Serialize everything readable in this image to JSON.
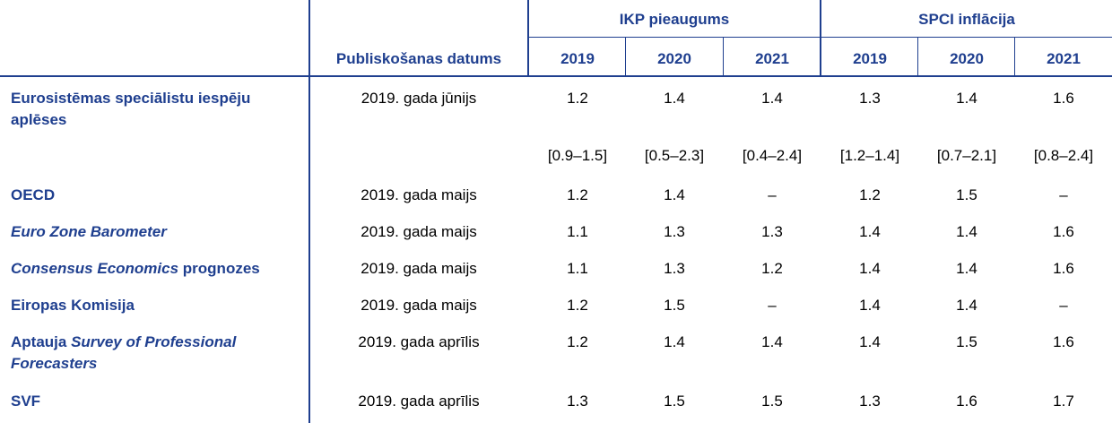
{
  "header": {
    "group_gdp": "IKP pieaugums",
    "group_hicp": "SPCI inflācija",
    "publication_date": "Publiskošanas datums",
    "years": [
      "2019",
      "2020",
      "2021",
      "2019",
      "2020",
      "2021"
    ]
  },
  "rows": [
    {
      "label_parts": [
        {
          "t": "Eurosistēmas speciālistu iespēju aplēses",
          "i": false
        }
      ],
      "date": "2019. gada jūnijs",
      "values": [
        "1.2",
        "1.4",
        "1.4",
        "1.3",
        "1.4",
        "1.6"
      ],
      "ranges": [
        "[0.9–1.5]",
        "[0.5–2.3]",
        "[0.4–2.4]",
        "[1.2–1.4]",
        "[0.7–2.1]",
        "[0.8–2.4]"
      ]
    },
    {
      "label_parts": [
        {
          "t": "OECD",
          "i": false
        }
      ],
      "date": "2019. gada maijs",
      "values": [
        "1.2",
        "1.4",
        "–",
        "1.2",
        "1.5",
        "–"
      ]
    },
    {
      "label_parts": [
        {
          "t": "Euro Zone Barometer",
          "i": true
        }
      ],
      "date": "2019. gada maijs",
      "values": [
        "1.1",
        "1.3",
        "1.3",
        "1.4",
        "1.4",
        "1.6"
      ]
    },
    {
      "label_parts": [
        {
          "t": "Consensus Economics",
          "i": true
        },
        {
          "t": " prognozes",
          "i": false
        }
      ],
      "date": "2019. gada maijs",
      "values": [
        "1.1",
        "1.3",
        "1.2",
        "1.4",
        "1.4",
        "1.6"
      ]
    },
    {
      "label_parts": [
        {
          "t": "Eiropas Komisija",
          "i": false
        }
      ],
      "date": "2019. gada maijs",
      "values": [
        "1.2",
        "1.5",
        "–",
        "1.4",
        "1.4",
        "–"
      ]
    },
    {
      "label_parts": [
        {
          "t": "Aptauja ",
          "i": false
        },
        {
          "t": "Survey of Professional Forecasters",
          "i": true
        }
      ],
      "date": "2019. gada aprīlis",
      "values": [
        "1.2",
        "1.4",
        "1.4",
        "1.4",
        "1.5",
        "1.6"
      ]
    },
    {
      "label_parts": [
        {
          "t": "SVF",
          "i": false
        }
      ],
      "date": "2019. gada aprīlis",
      "values": [
        "1.3",
        "1.5",
        "1.5",
        "1.3",
        "1.6",
        "1.7"
      ]
    }
  ]
}
